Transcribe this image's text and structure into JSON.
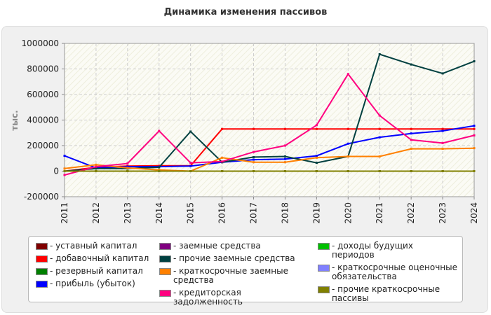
{
  "chart_data": {
    "type": "line",
    "title": "Динамика изменения пассивов",
    "ylabel": "тыс.",
    "xlabel": "",
    "x": [
      "2011",
      "2012",
      "2013",
      "2014",
      "2015",
      "2016",
      "2017",
      "2018",
      "2019",
      "2020",
      "2021",
      "2022",
      "2023",
      "2024"
    ],
    "ylim": [
      -200000,
      1000000
    ],
    "yticks": [
      -200000,
      0,
      200000,
      400000,
      600000,
      800000,
      1000000
    ],
    "ytick_labels": [
      "-200000",
      "0",
      "200000",
      "400000",
      "600000",
      "800000",
      "1000000"
    ],
    "grid": true,
    "legend_placement": "bottom",
    "series": [
      {
        "name": "- уставный капитал",
        "color": "#800000",
        "values": [
          0,
          0,
          0,
          0,
          0,
          0,
          0,
          0,
          0,
          0,
          0,
          0,
          0,
          0
        ]
      },
      {
        "name": "- добавочный капитал",
        "color": "#ff0000",
        "values": [
          0,
          30000,
          40000,
          42000,
          42000,
          330000,
          330000,
          330000,
          330000,
          330000,
          330000,
          330000,
          330000,
          330000
        ]
      },
      {
        "name": "- резервный капитал",
        "color": "#008000",
        "values": [
          0,
          0,
          0,
          0,
          0,
          0,
          0,
          0,
          0,
          0,
          0,
          0,
          0,
          0
        ]
      },
      {
        "name": "- прибыль (убыток)",
        "color": "#0000ff",
        "values": [
          120000,
          25000,
          35000,
          35000,
          40000,
          70000,
          90000,
          95000,
          120000,
          215000,
          265000,
          295000,
          315000,
          355000
        ]
      },
      {
        "name": "- заемные средства",
        "color": "#800080",
        "values": [
          0,
          0,
          0,
          0,
          0,
          0,
          0,
          0,
          0,
          0,
          0,
          0,
          0,
          0
        ]
      },
      {
        "name": "- прочие заемные средства",
        "color": "#004040",
        "values": [
          0,
          20000,
          20000,
          30000,
          310000,
          70000,
          110000,
          115000,
          65000,
          115000,
          915000,
          835000,
          765000,
          860000
        ]
      },
      {
        "name": "- краткосрочные заемные средства",
        "color": "#ff8000",
        "values": [
          20000,
          50000,
          25000,
          10000,
          0,
          105000,
          70000,
          70000,
          105000,
          115000,
          115000,
          175000,
          175000,
          180000
        ]
      },
      {
        "name": "- кредиторская задолженность",
        "color": "#ff0080",
        "values": [
          -30000,
          35000,
          60000,
          315000,
          65000,
          75000,
          150000,
          200000,
          360000,
          760000,
          435000,
          245000,
          220000,
          280000
        ]
      },
      {
        "name": "- доходы будущих периодов",
        "color": "#00c000",
        "values": [
          0,
          0,
          0,
          0,
          0,
          0,
          0,
          0,
          0,
          0,
          0,
          0,
          0,
          0
        ]
      },
      {
        "name": "- краткосрочные оценочные обязательства",
        "color": "#8080ff",
        "values": [
          0,
          0,
          0,
          0,
          0,
          0,
          0,
          0,
          0,
          0,
          0,
          0,
          0,
          0
        ]
      },
      {
        "name": "- прочие краткосрочные пассивы",
        "color": "#808000",
        "values": [
          0,
          0,
          0,
          0,
          0,
          0,
          0,
          0,
          0,
          0,
          0,
          0,
          0,
          0
        ]
      }
    ]
  }
}
